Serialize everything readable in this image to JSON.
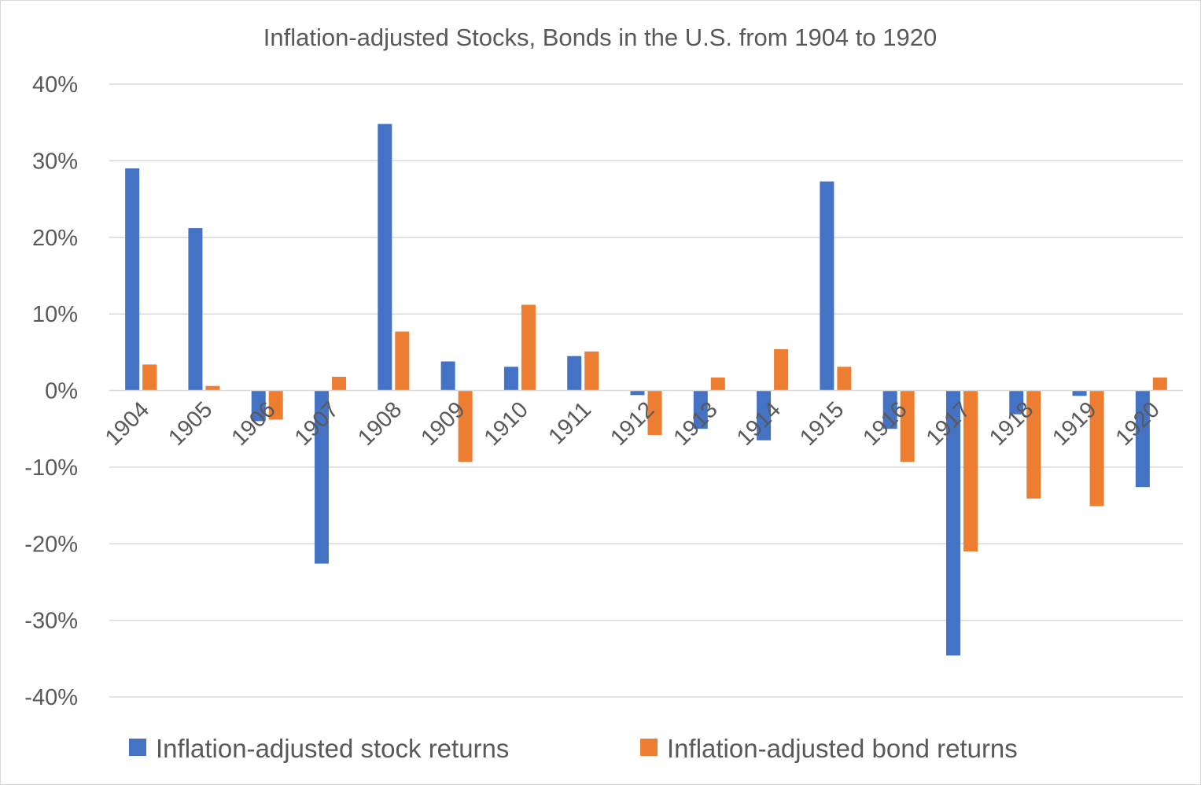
{
  "chart_data": {
    "type": "bar",
    "title": "Inflation-adjusted Stocks, Bonds in the U.S. from 1904 to 1920",
    "xlabel": "",
    "ylabel": "",
    "ylim": [
      -40,
      40
    ],
    "y_unit": "%",
    "y_ticks": [
      "40%",
      "30%",
      "20%",
      "10%",
      "0%",
      "-10%",
      "-20%",
      "-30%",
      "-40%"
    ],
    "y_tick_values": [
      40,
      30,
      20,
      10,
      0,
      -10,
      -20,
      -30,
      -40
    ],
    "grid": "horizontal",
    "legend_position": "bottom",
    "categories": [
      "1904",
      "1905",
      "1906",
      "1907",
      "1908",
      "1909",
      "1910",
      "1911",
      "1912",
      "1913",
      "1914",
      "1915",
      "1916",
      "1917",
      "1918",
      "1919",
      "1920"
    ],
    "series": [
      {
        "name": "Inflation-adjusted stock returns",
        "color": "#4472c4",
        "values": [
          29.0,
          21.2,
          -4.0,
          -22.6,
          34.8,
          3.8,
          3.1,
          4.5,
          -0.6,
          -5.0,
          -6.5,
          27.3,
          -5.0,
          -34.6,
          -3.1,
          -0.7,
          -12.6
        ]
      },
      {
        "name": "Inflation-adjusted bond returns",
        "color": "#ed7d31",
        "values": [
          3.4,
          0.6,
          -3.8,
          1.8,
          7.7,
          -9.3,
          11.2,
          5.1,
          -5.8,
          1.7,
          5.4,
          3.1,
          -9.3,
          -21.0,
          -14.1,
          -15.1,
          1.7
        ]
      }
    ]
  }
}
